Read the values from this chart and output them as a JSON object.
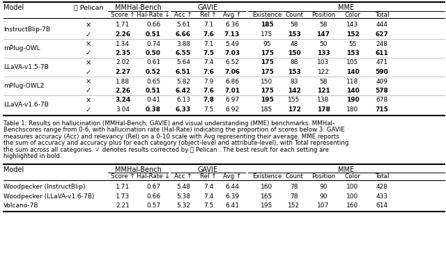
{
  "table1_rows": [
    [
      "InstructBlip-7B",
      "×",
      "1.71",
      "0.66",
      "5.61",
      "7.1",
      "6.36",
      "185",
      "58",
      "58",
      "143",
      "444"
    ],
    [
      "InstructBlip-7B",
      "✓",
      "2.26",
      "0.51",
      "6.66",
      "7.6",
      "7.13",
      "175",
      "153",
      "147",
      "152",
      "627"
    ],
    [
      "mPlug-OWL",
      "×",
      "1.34",
      "0.74",
      "3.88",
      "7.1",
      "5.49",
      "95",
      "48",
      "50",
      "55",
      "248"
    ],
    [
      "mPlug-OWL",
      "✓",
      "2.35",
      "0.50",
      "6.55",
      "7.5",
      "7.03",
      "175",
      "150",
      "133",
      "153",
      "611"
    ],
    [
      "LLaVA-v1.5-7B",
      "×",
      "2.02",
      "0.61",
      "5.64",
      "7.4",
      "6.52",
      "175",
      "88",
      "103",
      "105",
      "471"
    ],
    [
      "LLaVA-v1.5-7B",
      "✓",
      "2.27",
      "0.52",
      "6.51",
      "7.6",
      "7.06",
      "175",
      "153",
      "122",
      "140",
      "590"
    ],
    [
      "mPlug-OWL2",
      "×",
      "1.88",
      "0.65",
      "5.82",
      "7.9",
      "6.86",
      "150",
      "83",
      "58",
      "118",
      "409"
    ],
    [
      "mPlug-OWL2",
      "✓",
      "2.26",
      "0.51",
      "6.42",
      "7.6",
      "7.01",
      "175",
      "142",
      "121",
      "140",
      "578"
    ],
    [
      "LLaVA-v1.6-7B",
      "×",
      "3.24",
      "0.41",
      "6.13",
      "7.8",
      "6.97",
      "195",
      "155",
      "138",
      "190",
      "678"
    ],
    [
      "LLaVA-v1.6-7B",
      "✓",
      "3.04",
      "0.38",
      "6.33",
      "7.5",
      "6.92",
      "185",
      "172",
      "178",
      "180",
      "715"
    ]
  ],
  "table1_bold": [
    [
      false,
      false,
      false,
      false,
      false,
      false,
      false,
      true,
      false,
      false,
      false,
      false
    ],
    [
      false,
      false,
      true,
      true,
      true,
      true,
      true,
      false,
      true,
      true,
      true,
      true
    ],
    [
      false,
      false,
      false,
      false,
      false,
      false,
      false,
      false,
      false,
      false,
      false,
      false
    ],
    [
      false,
      false,
      true,
      true,
      true,
      true,
      true,
      true,
      true,
      true,
      true,
      true
    ],
    [
      false,
      false,
      false,
      false,
      false,
      false,
      false,
      true,
      false,
      false,
      false,
      false
    ],
    [
      false,
      false,
      true,
      true,
      true,
      true,
      true,
      true,
      true,
      false,
      true,
      true
    ],
    [
      false,
      false,
      false,
      false,
      false,
      false,
      false,
      false,
      false,
      false,
      false,
      false
    ],
    [
      false,
      false,
      true,
      true,
      true,
      true,
      true,
      true,
      true,
      true,
      true,
      true
    ],
    [
      false,
      false,
      true,
      false,
      false,
      true,
      false,
      true,
      false,
      false,
      true,
      false
    ],
    [
      false,
      false,
      false,
      true,
      true,
      false,
      false,
      false,
      true,
      true,
      false,
      true
    ]
  ],
  "table2_rows": [
    [
      "Woodpecker (InstructBlip)",
      "1.71",
      "0.67",
      "5.48",
      "7.4",
      "6.44",
      "160",
      "78",
      "90",
      "100",
      "428"
    ],
    [
      "Woodpecker (LLaVA-v1.6-7B)",
      "1.73",
      "0.66",
      "5.38",
      "7.4",
      "6.39",
      "165",
      "78",
      "90",
      "100",
      "433"
    ],
    [
      "Volcano-7B",
      "2.21",
      "0.57",
      "5.32",
      "7.5",
      "6.41",
      "195",
      "152",
      "107",
      "160",
      "614"
    ]
  ],
  "caption": "Table 1: Results on hallucination (MMHal-Bench, GAVIE) and visual understanding (MME) benchmarks. MMHal-Benchscores range from 0-6, with hallucination rate (Hal-Rate) indicating the proportion of scores below 3. GAVIE measures accuracy (Acc) and relevancy (Rel) on a 0-10 scale with Avg representing their average. MME reports the sum of accuracy and accuracy plus for each category (object-level and attribute-level), with Total representing the sum across all categories. ✓ denotes results corrected by 🐦 Pelican . The best result for each setting are highlighted in bold.",
  "sub_labels": [
    "Score ↑",
    "Hal-Rate ↓",
    "Acc ↑",
    "Rel ↑",
    "Avg ↑",
    "Existence",
    "Count",
    "Position",
    "Color",
    "Total"
  ],
  "bg_color": "#ffffff"
}
